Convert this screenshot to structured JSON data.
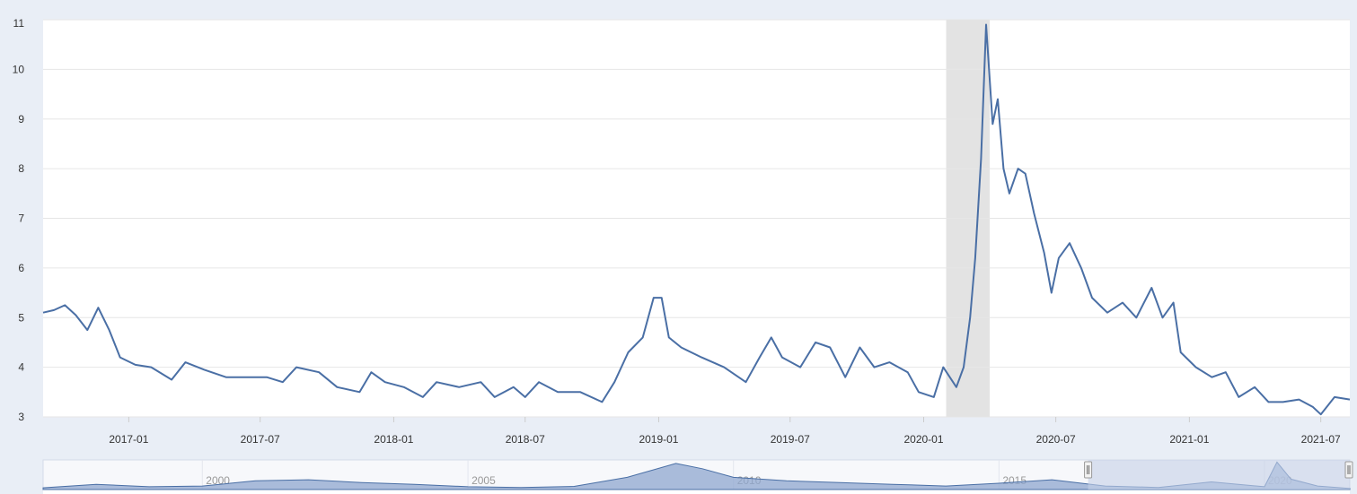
{
  "chart_data": {
    "type": "line",
    "title": "",
    "xlabel": "",
    "ylabel": "",
    "ylim": [
      3,
      11
    ],
    "xlim": [
      "2016-09-05",
      "2021-08-10"
    ],
    "y_ticks": [
      "3",
      "4",
      "5",
      "6",
      "7",
      "8",
      "9",
      "10",
      "11"
    ],
    "x_ticks": [
      "2017-01",
      "2017-07",
      "2018-01",
      "2018-07",
      "2019-01",
      "2019-07",
      "2020-01",
      "2020-07",
      "2021-01",
      "2021-07"
    ],
    "grid": "horizontal",
    "legend": "none",
    "recession_band": [
      "2020-02-01",
      "2020-04-01"
    ],
    "series": [
      {
        "values": [
          [
            "2016-09-05",
            5.1
          ],
          [
            "2016-09-20",
            5.15
          ],
          [
            "2016-10-05",
            5.25
          ],
          [
            "2016-10-20",
            5.05
          ],
          [
            "2016-11-05",
            4.75
          ],
          [
            "2016-11-20",
            5.2
          ],
          [
            "2016-12-05",
            4.75
          ],
          [
            "2016-12-20",
            4.2
          ],
          [
            "2017-01-10",
            4.05
          ],
          [
            "2017-02-01",
            4.0
          ],
          [
            "2017-03-01",
            3.75
          ],
          [
            "2017-03-20",
            4.1
          ],
          [
            "2017-04-15",
            3.95
          ],
          [
            "2017-05-15",
            3.8
          ],
          [
            "2017-06-15",
            3.8
          ],
          [
            "2017-07-10",
            3.8
          ],
          [
            "2017-08-01",
            3.7
          ],
          [
            "2017-08-20",
            4.0
          ],
          [
            "2017-09-20",
            3.9
          ],
          [
            "2017-10-15",
            3.6
          ],
          [
            "2017-11-15",
            3.5
          ],
          [
            "2017-12-01",
            3.9
          ],
          [
            "2017-12-20",
            3.7
          ],
          [
            "2018-01-15",
            3.6
          ],
          [
            "2018-02-10",
            3.4
          ],
          [
            "2018-03-01",
            3.7
          ],
          [
            "2018-04-01",
            3.6
          ],
          [
            "2018-05-01",
            3.7
          ],
          [
            "2018-05-20",
            3.4
          ],
          [
            "2018-06-15",
            3.6
          ],
          [
            "2018-07-01",
            3.4
          ],
          [
            "2018-07-20",
            3.7
          ],
          [
            "2018-08-15",
            3.5
          ],
          [
            "2018-09-15",
            3.5
          ],
          [
            "2018-10-15",
            3.3
          ],
          [
            "2018-11-01",
            3.7
          ],
          [
            "2018-11-20",
            4.3
          ],
          [
            "2018-12-10",
            4.6
          ],
          [
            "2018-12-25",
            5.4
          ],
          [
            "2019-01-05",
            5.4
          ],
          [
            "2019-01-15",
            4.6
          ],
          [
            "2019-02-01",
            4.4
          ],
          [
            "2019-03-01",
            4.2
          ],
          [
            "2019-04-01",
            4.0
          ],
          [
            "2019-05-01",
            3.7
          ],
          [
            "2019-05-20",
            4.2
          ],
          [
            "2019-06-05",
            4.6
          ],
          [
            "2019-06-20",
            4.2
          ],
          [
            "2019-07-15",
            4.0
          ],
          [
            "2019-08-05",
            4.5
          ],
          [
            "2019-08-25",
            4.4
          ],
          [
            "2019-09-15",
            3.8
          ],
          [
            "2019-10-05",
            4.4
          ],
          [
            "2019-10-25",
            4.0
          ],
          [
            "2019-11-15",
            4.1
          ],
          [
            "2019-12-10",
            3.9
          ],
          [
            "2019-12-25",
            3.5
          ],
          [
            "2020-01-15",
            3.4
          ],
          [
            "2020-01-28",
            4.0
          ],
          [
            "2020-02-15",
            3.6
          ],
          [
            "2020-02-25",
            4.0
          ],
          [
            "2020-03-05",
            5.0
          ],
          [
            "2020-03-12",
            6.2
          ],
          [
            "2020-03-20",
            8.2
          ],
          [
            "2020-03-27",
            10.9
          ],
          [
            "2020-04-05",
            8.9
          ],
          [
            "2020-04-12",
            9.4
          ],
          [
            "2020-04-20",
            8.0
          ],
          [
            "2020-04-28",
            7.5
          ],
          [
            "2020-05-10",
            8.0
          ],
          [
            "2020-05-20",
            7.9
          ],
          [
            "2020-06-01",
            7.1
          ],
          [
            "2020-06-15",
            6.3
          ],
          [
            "2020-06-25",
            5.5
          ],
          [
            "2020-07-05",
            6.2
          ],
          [
            "2020-07-20",
            6.5
          ],
          [
            "2020-08-05",
            6.0
          ],
          [
            "2020-08-20",
            5.4
          ],
          [
            "2020-09-10",
            5.1
          ],
          [
            "2020-10-01",
            5.3
          ],
          [
            "2020-10-20",
            5.0
          ],
          [
            "2020-11-10",
            5.6
          ],
          [
            "2020-11-25",
            5.0
          ],
          [
            "2020-12-10",
            5.3
          ],
          [
            "2020-12-20",
            4.3
          ],
          [
            "2021-01-10",
            4.0
          ],
          [
            "2021-02-01",
            3.8
          ],
          [
            "2021-02-20",
            3.9
          ],
          [
            "2021-03-10",
            3.4
          ],
          [
            "2021-04-01",
            3.6
          ],
          [
            "2021-04-20",
            3.3
          ],
          [
            "2021-05-10",
            3.3
          ],
          [
            "2021-06-01",
            3.35
          ],
          [
            "2021-06-20",
            3.2
          ],
          [
            "2021-07-01",
            3.05
          ],
          [
            "2021-07-20",
            3.4
          ],
          [
            "2021-08-10",
            3.35
          ]
        ]
      }
    ],
    "navigator": {
      "ticks": [
        "2000",
        "2005",
        "2010",
        "2015",
        "2020"
      ],
      "range": [
        "1997-01-01",
        "2021-08-10"
      ],
      "selected": [
        "2016-09-05",
        "2021-08-10"
      ],
      "series": [
        [
          "1997-01-01",
          3.5
        ],
        [
          "1998-01-01",
          4.5
        ],
        [
          "1999-01-01",
          3.8
        ],
        [
          "2000-01-01",
          4.0
        ],
        [
          "2001-01-01",
          5.5
        ],
        [
          "2002-01-01",
          5.8
        ],
        [
          "2003-01-01",
          5.0
        ],
        [
          "2004-01-01",
          4.5
        ],
        [
          "2005-01-01",
          3.8
        ],
        [
          "2006-01-01",
          3.6
        ],
        [
          "2007-01-01",
          3.9
        ],
        [
          "2008-01-01",
          6.5
        ],
        [
          "2008-12-01",
          10.5
        ],
        [
          "2009-06-01",
          9.0
        ],
        [
          "2010-01-01",
          6.5
        ],
        [
          "2011-01-01",
          5.5
        ],
        [
          "2012-01-01",
          5.0
        ],
        [
          "2013-01-01",
          4.5
        ],
        [
          "2014-01-01",
          4.0
        ],
        [
          "2015-01-01",
          4.8
        ],
        [
          "2016-01-01",
          5.8
        ],
        [
          "2017-01-01",
          4.0
        ],
        [
          "2018-01-01",
          3.6
        ],
        [
          "2019-01-01",
          5.2
        ],
        [
          "2020-01-01",
          3.8
        ],
        [
          "2020-03-27",
          10.9
        ],
        [
          "2020-07-01",
          6.0
        ],
        [
          "2021-01-01",
          4.0
        ],
        [
          "2021-08-10",
          3.3
        ]
      ]
    }
  },
  "colors": {
    "line": "#4a6fa5",
    "grid": "#e6e6e6",
    "recession": "#e3e3e3",
    "frame": "#e9eef6",
    "navigator_fill": "#8fa7cf",
    "navigator_mask": "#c4d0e8"
  }
}
